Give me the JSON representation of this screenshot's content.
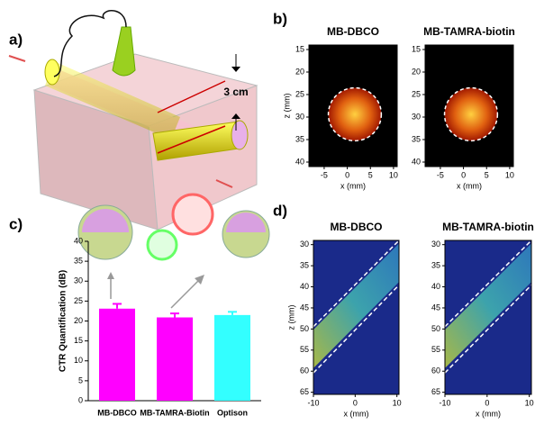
{
  "panel_labels": [
    "a)",
    "b)",
    "c)",
    "d)"
  ],
  "diagram": {
    "label": "3 cm"
  },
  "chart_data": [
    {
      "type": "bar",
      "ylabel": "CTR Quantification (dB)",
      "categories": [
        "MB-DBCO",
        "MB-TAMRA-Biotin",
        "Optison"
      ],
      "values": [
        23.1,
        20.9,
        21.5
      ],
      "errors": [
        1.2,
        1.0,
        0.8
      ],
      "colors": [
        "#ff00ff",
        "#ff00ff",
        "#33ffff"
      ],
      "ylim": [
        0,
        40
      ],
      "yticks": [
        0,
        5,
        10,
        15,
        20,
        25,
        30,
        35,
        40
      ]
    },
    {
      "type": "image",
      "colormap": "hot",
      "title": "MB-DBCO",
      "xlabel": "x (mm)",
      "ylabel": "z (mm)",
      "xlim": [
        -8.3,
        10.8
      ],
      "xticks": [
        -5,
        0,
        5,
        10
      ],
      "ylim": [
        14,
        41
      ],
      "yticks": [
        15,
        20,
        25,
        30,
        35,
        40
      ]
    },
    {
      "type": "image",
      "colormap": "hot",
      "title": "MB-TAMRA-biotin",
      "xlabel": "x (mm)",
      "xlim": [
        -8.3,
        10.8
      ],
      "xticks": [
        -5,
        0,
        5,
        10
      ],
      "ylim": [
        14,
        41
      ],
      "yticks": [
        15,
        20,
        25,
        30,
        35,
        40
      ]
    },
    {
      "type": "image",
      "colormap": "jet",
      "title": "MB-DBCO",
      "xlabel": "x (mm)",
      "ylabel": "z (mm)",
      "xlim": [
        -10,
        10.5
      ],
      "xticks": [
        -10,
        0,
        10
      ],
      "ylim": [
        29,
        65.5
      ],
      "yticks": [
        30,
        35,
        40,
        45,
        50,
        55,
        60,
        65
      ]
    },
    {
      "type": "image",
      "colormap": "jet",
      "title": "MB-TAMRA-biotin",
      "xlabel": "x (mm)",
      "xlim": [
        -10,
        10.5
      ],
      "xticks": [
        -10,
        0,
        10
      ],
      "ylim": [
        29,
        65.5
      ],
      "yticks": [
        30,
        35,
        40,
        45,
        50,
        55,
        60,
        65
      ]
    }
  ]
}
